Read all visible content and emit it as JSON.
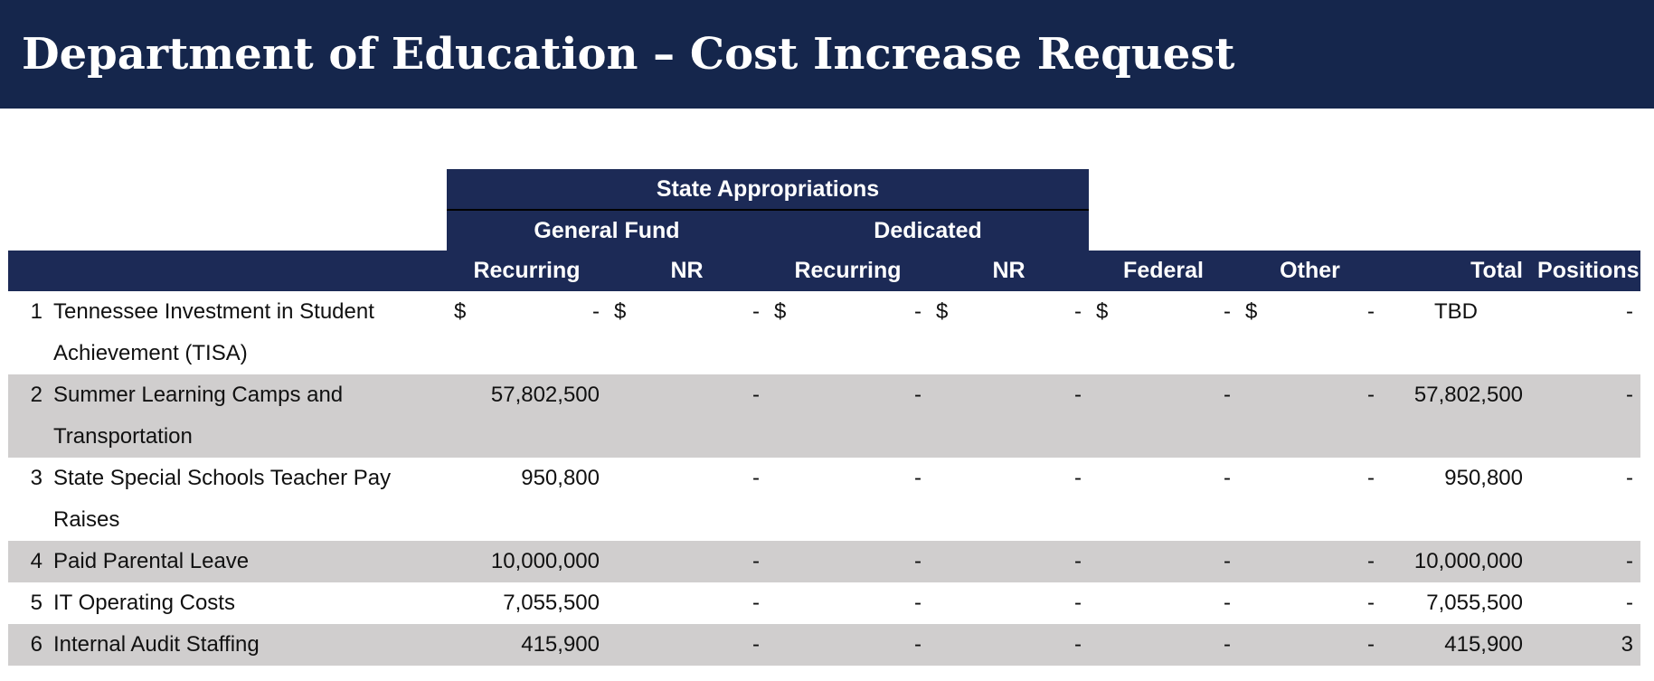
{
  "header": {
    "title": "Department of Education – Cost Increase Request"
  },
  "table": {
    "group_header": "State Appropriations",
    "subgroups": [
      "General Fund",
      "Dedicated"
    ],
    "columns": [
      "Recurring",
      "NR",
      "Recurring",
      "NR",
      "Federal",
      "Other",
      "Total",
      "Positions"
    ],
    "rows": [
      {
        "num": "1",
        "label": "Tennessee Investment in Student Achievement (TISA)",
        "cells": [
          {
            "symbol": "$",
            "text": "-"
          },
          {
            "symbol": "$",
            "text": "-"
          },
          {
            "symbol": "$",
            "text": "-"
          },
          {
            "symbol": "$",
            "text": "-"
          },
          {
            "symbol": "$",
            "text": "-"
          },
          {
            "symbol": "$",
            "text": "-"
          },
          "TBD",
          "-"
        ]
      },
      {
        "num": "2",
        "label": "Summer Learning Camps and Transportation",
        "cells": [
          "57,802,500",
          "-",
          "-",
          "-",
          "-",
          "-",
          "57,802,500",
          "-"
        ]
      },
      {
        "num": "3",
        "label": "State Special Schools Teacher Pay Raises",
        "cells": [
          "950,800",
          "-",
          "-",
          "-",
          "-",
          "-",
          "950,800",
          "-"
        ]
      },
      {
        "num": "4",
        "label": "Paid Parental Leave",
        "cells": [
          "10,000,000",
          "-",
          "-",
          "-",
          "-",
          "-",
          "10,000,000",
          "-"
        ]
      },
      {
        "num": "5",
        "label": "IT Operating Costs",
        "cells": [
          "7,055,500",
          "-",
          "-",
          "-",
          "-",
          "-",
          "7,055,500",
          "-"
        ]
      },
      {
        "num": "6",
        "label": "Internal Audit Staffing",
        "cells": [
          "415,900",
          "-",
          "-",
          "-",
          "-",
          "-",
          "415,900",
          "3"
        ]
      }
    ]
  }
}
